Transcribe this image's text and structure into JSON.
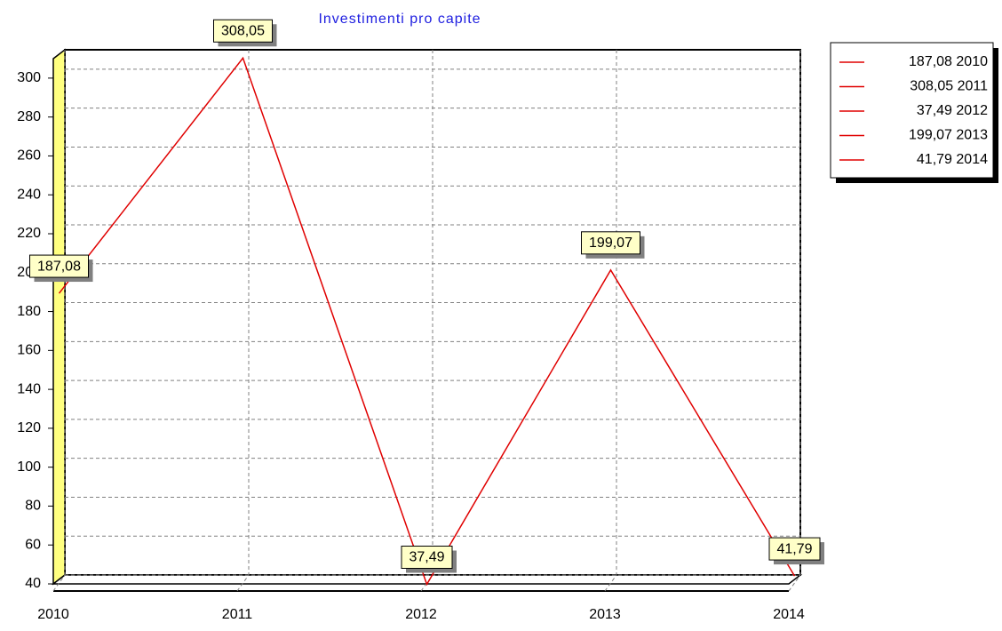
{
  "chart_data": {
    "type": "line",
    "title": "Investimenti pro capite",
    "categories": [
      "2010",
      "2011",
      "2012",
      "2013",
      "2014"
    ],
    "series": [
      {
        "name": "Investimenti pro capite",
        "color": "#e00000",
        "values": [
          187.08,
          308.05,
          37.49,
          199.07,
          41.79
        ],
        "value_labels": [
          "187,08",
          "308,05",
          "37,49",
          "199,07",
          "41,79"
        ]
      }
    ],
    "ylim": [
      40,
      310
    ],
    "yticks": [
      40,
      60,
      80,
      100,
      120,
      140,
      160,
      180,
      200,
      220,
      240,
      260,
      280,
      300
    ],
    "grid": true,
    "legend": "right"
  }
}
